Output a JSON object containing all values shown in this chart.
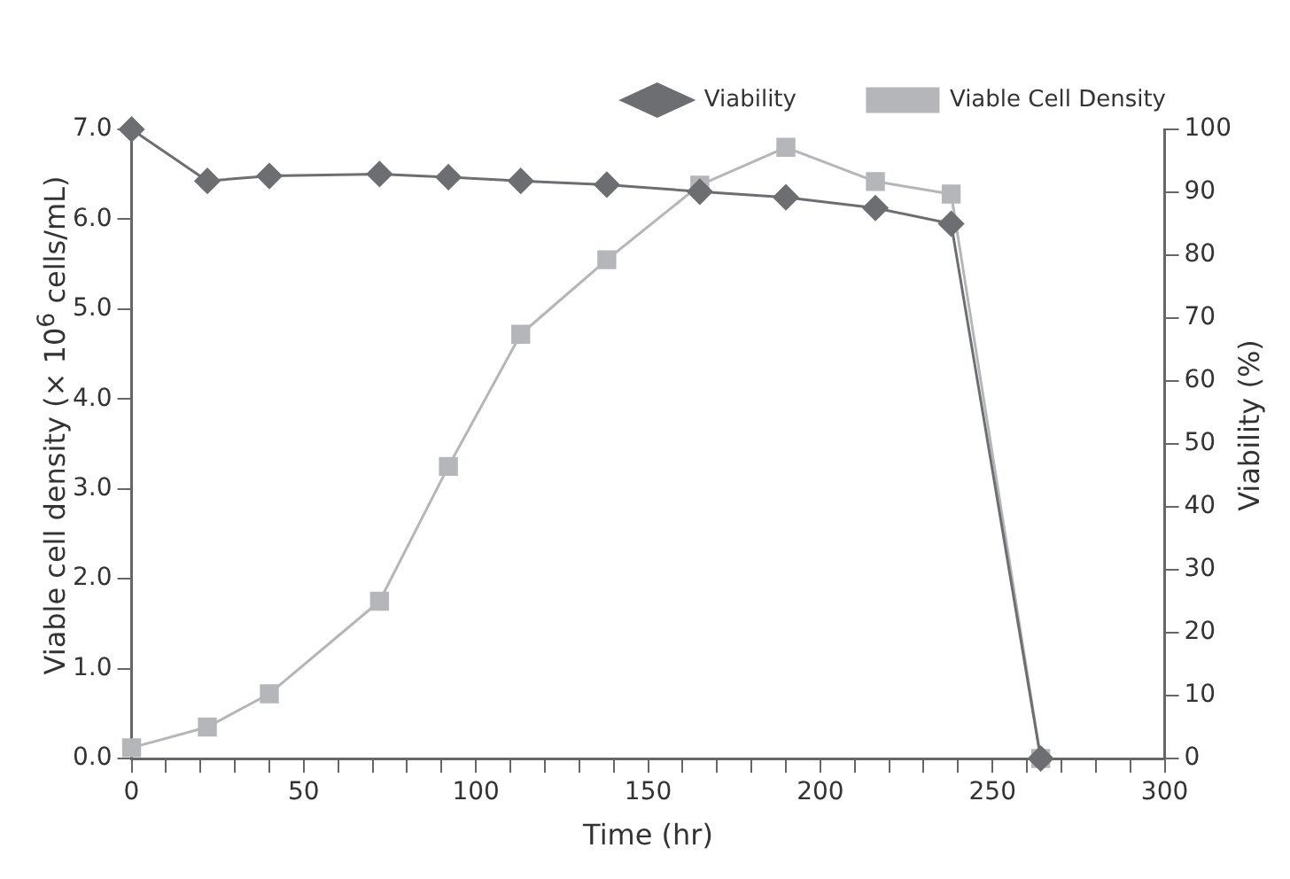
{
  "chart_data": {
    "type": "line",
    "xlabel": "Time (hr)",
    "ylabel": "Viable cell density (× 10$^{6}$ cells/mL)",
    "y2label": "Viability (%)",
    "x": [
      0,
      22,
      40,
      72,
      92,
      113,
      138,
      165,
      190,
      216,
      238,
      264
    ],
    "series": [
      {
        "name": "Viable Cell Density",
        "color": "#b4b6b9",
        "marker": "square",
        "values": [
          0.12,
          0.35,
          0.72,
          1.75,
          3.25,
          4.72,
          5.55,
          6.38,
          6.8,
          6.42,
          6.28,
          0.0
        ]
      },
      {
        "name": "Viability",
        "color": "#6d6e71",
        "marker": "diamond",
        "axis": "y2",
        "values": [
          100,
          91.8,
          92.6,
          92.9,
          92.4,
          91.8,
          91.2,
          90.1,
          89.2,
          87.5,
          85,
          0
        ]
      }
    ],
    "xlim": [
      0,
      300
    ],
    "xticks": [
      0,
      {
        "value": 10,
        "label": null
      },
      {
        "value": 20,
        "label": null
      },
      {
        "value": 30,
        "label": null
      },
      {
        "value": 40,
        "label": null
      },
      50,
      {
        "value": 60,
        "label": null
      },
      {
        "value": 70,
        "label": null
      },
      {
        "value": 80,
        "label": null
      },
      {
        "value": 90,
        "label": null
      },
      100,
      {
        "value": 110,
        "label": null
      },
      {
        "value": 120,
        "label": null
      },
      {
        "value": 130,
        "label": null
      },
      {
        "value": 140,
        "label": null
      },
      150,
      {
        "value": 160,
        "label": null
      },
      {
        "value": 170,
        "label": null
      },
      {
        "value": 180,
        "label": null
      },
      {
        "value": 190,
        "label": null
      },
      200,
      {
        "value": 210,
        "label": null
      },
      {
        "value": 220,
        "label": null
      },
      {
        "value": 230,
        "label": null
      },
      {
        "value": 240,
        "label": null
      },
      250,
      {
        "value": 260,
        "label": null
      },
      {
        "value": 270,
        "label": null
      },
      {
        "value": 280,
        "label": null
      },
      {
        "value": 290,
        "label": null
      },
      300
    ],
    "ylim": [
      0,
      7
    ],
    "yticks": [
      {
        "value": 0,
        "label": "0.0"
      },
      {
        "value": 1,
        "label": "1.0"
      },
      {
        "value": 2,
        "label": "2.0"
      },
      {
        "value": 3,
        "label": "3.0"
      },
      {
        "value": 4,
        "label": "4.0"
      },
      {
        "value": 5,
        "label": "5.0"
      },
      {
        "value": 6,
        "label": "6.0"
      },
      {
        "value": 7,
        "label": "7.0"
      }
    ],
    "y2lim": [
      0,
      100
    ],
    "y2ticks": [
      0,
      10,
      20,
      30,
      40,
      50,
      60,
      70,
      80,
      90,
      100
    ],
    "grid": false,
    "legend": "top right",
    "line_style": "solid"
  }
}
